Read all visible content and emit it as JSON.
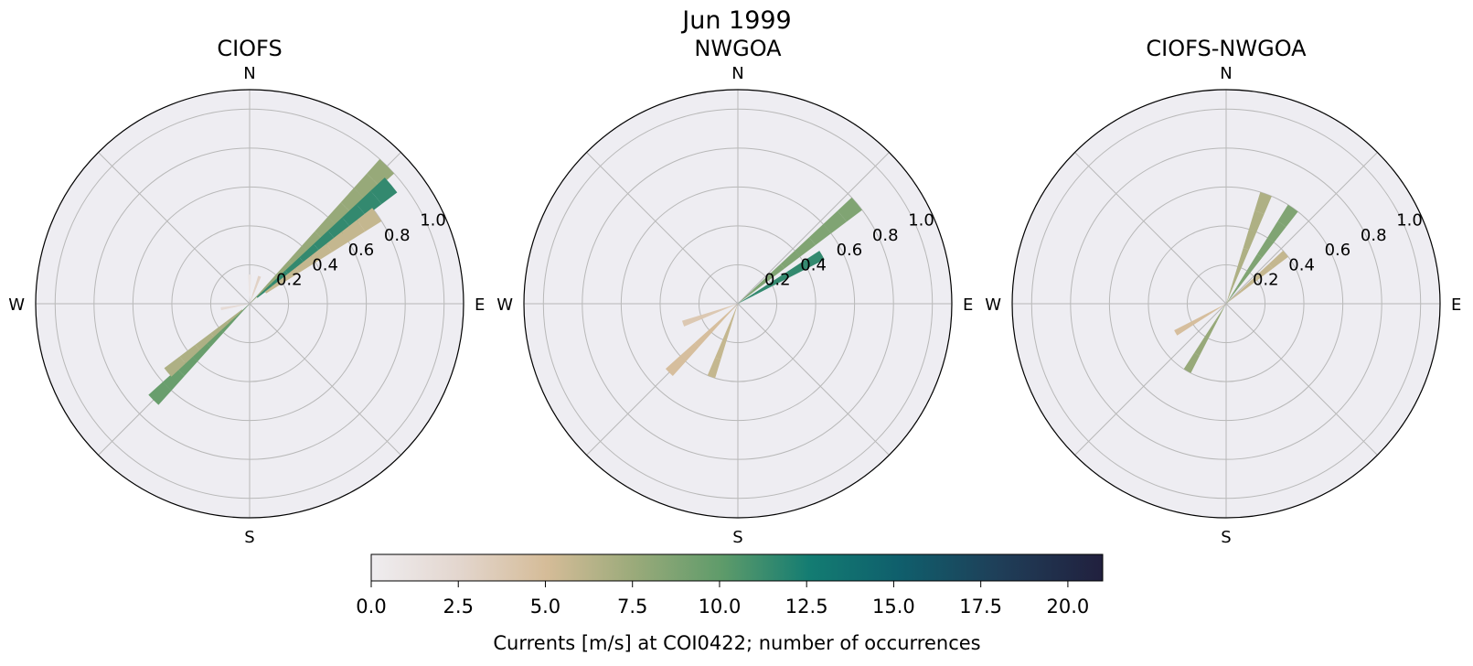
{
  "figure_title": "Jun 1999",
  "chart_data": {
    "type": "polar-histogram",
    "directions": [
      "N",
      "E",
      "S",
      "W"
    ],
    "rlim": [
      0,
      1.1
    ],
    "rticks": [
      0.2,
      0.4,
      0.6,
      0.8,
      1.0
    ],
    "grid": true,
    "angle_grid_deg": [
      0,
      45,
      90,
      135,
      180,
      225,
      270,
      315
    ],
    "colorbar": {
      "label": "Currents [m/s] at COI0422; number of occurrences",
      "ticks": [
        "0.0",
        "2.5",
        "5.0",
        "7.5",
        "10.0",
        "12.5",
        "15.0",
        "17.5",
        "20.0"
      ],
      "range": [
        0,
        21
      ],
      "colors": [
        "#efedf0",
        "#e3d6ce",
        "#d5bc98",
        "#9aaa7a",
        "#5e9b6a",
        "#137c72",
        "#0f5f6c",
        "#1f3e58",
        "#21203e"
      ]
    },
    "panels": [
      {
        "title": "CIOFS",
        "direction_counts": [
          {
            "dir": 0,
            "r": [
              0.1,
              0.15
            ],
            "c": 1
          },
          {
            "dir": 20,
            "r": [
              0.1,
              0.15
            ],
            "c": 3
          },
          {
            "dir": 45,
            "r": [
              0.1,
              0.2,
              0.3,
              0.4,
              0.5,
              0.6,
              0.7,
              0.8,
              0.9,
              1.0
            ],
            "c": 8
          },
          {
            "dir": 50,
            "r": [
              0.15,
              0.25,
              0.35,
              0.45,
              0.55,
              0.65,
              0.75,
              0.85,
              0.95
            ],
            "c": 12
          },
          {
            "dir": 55,
            "r": [
              0.2,
              0.3,
              0.4,
              0.5,
              0.6,
              0.7,
              0.8
            ],
            "c": 6
          },
          {
            "dir": 225,
            "r": [
              0.1,
              0.2,
              0.3,
              0.4,
              0.5,
              0.6,
              0.7
            ],
            "c": 10
          },
          {
            "dir": 230,
            "r": [
              0.15,
              0.25,
              0.35,
              0.45,
              0.55
            ],
            "c": 7
          },
          {
            "dir": 260,
            "r": [
              0.1,
              0.15
            ],
            "c": 2
          }
        ]
      },
      {
        "title": "NWGOA",
        "direction_counts": [
          {
            "dir": 50,
            "r": [
              0.1,
              0.2,
              0.3,
              0.4,
              0.5,
              0.6,
              0.7,
              0.8
            ],
            "c": 9
          },
          {
            "dir": 60,
            "r": [
              0.1,
              0.2,
              0.3,
              0.4,
              0.5
            ],
            "c": 12
          },
          {
            "dir": 200,
            "r": [
              0.1,
              0.2,
              0.3,
              0.4
            ],
            "c": 6
          },
          {
            "dir": 225,
            "r": [
              0.1,
              0.2,
              0.3,
              0.4,
              0.5
            ],
            "c": 5
          },
          {
            "dir": 250,
            "r": [
              0.1,
              0.2,
              0.3
            ],
            "c": 4
          }
        ]
      },
      {
        "title": "CIOFS-NWGOA",
        "direction_counts": [
          {
            "dir": 20,
            "r": [
              0.1,
              0.2,
              0.3,
              0.4,
              0.5,
              0.6
            ],
            "c": 7
          },
          {
            "dir": 35,
            "r": [
              0.1,
              0.2,
              0.3,
              0.4,
              0.5,
              0.6
            ],
            "c": 9
          },
          {
            "dir": 50,
            "r": [
              0.1,
              0.2,
              0.3,
              0.4
            ],
            "c": 6
          },
          {
            "dir": 210,
            "r": [
              0.1,
              0.2,
              0.3,
              0.4
            ],
            "c": 8
          },
          {
            "dir": 240,
            "r": [
              0.1,
              0.2,
              0.3
            ],
            "c": 5
          }
        ]
      }
    ]
  }
}
